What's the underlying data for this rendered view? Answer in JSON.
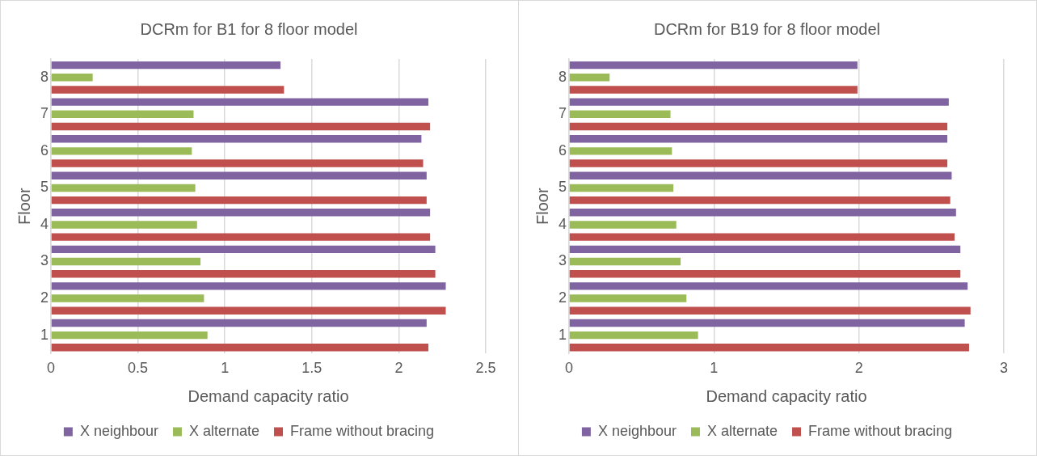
{
  "chart_data": [
    {
      "type": "bar",
      "orientation": "horizontal",
      "title": "DCRm for B1 for 8 floor model",
      "xlabel": "Demand capacity ratio",
      "ylabel": "Floor",
      "categories": [
        "8",
        "7",
        "6",
        "5",
        "4",
        "3",
        "2",
        "1"
      ],
      "series": [
        {
          "name": "X neighbour",
          "color": "#8064a2",
          "values": [
            1.32,
            2.17,
            2.13,
            2.16,
            2.18,
            2.21,
            2.27,
            2.16
          ]
        },
        {
          "name": "X alternate",
          "color": "#9bbb59",
          "values": [
            0.24,
            0.82,
            0.81,
            0.83,
            0.84,
            0.86,
            0.88,
            0.9
          ]
        },
        {
          "name": "Frame without bracing",
          "color": "#c0504d",
          "values": [
            1.34,
            2.18,
            2.14,
            2.16,
            2.18,
            2.21,
            2.27,
            2.17
          ]
        }
      ],
      "xlim": [
        0,
        2.5
      ],
      "xticks": [
        0,
        0.5,
        1,
        1.5,
        2,
        2.5
      ],
      "grid": "x",
      "legend": "bottom"
    },
    {
      "type": "bar",
      "orientation": "horizontal",
      "title": "DCRm for B19 for 8 floor model",
      "xlabel": "Demand capacity ratio",
      "ylabel": "Floor",
      "categories": [
        "8",
        "7",
        "6",
        "5",
        "4",
        "3",
        "2",
        "1"
      ],
      "series": [
        {
          "name": "X neighbour",
          "color": "#8064a2",
          "values": [
            1.99,
            2.62,
            2.61,
            2.64,
            2.67,
            2.7,
            2.75,
            2.73
          ]
        },
        {
          "name": "X alternate",
          "color": "#9bbb59",
          "values": [
            0.28,
            0.7,
            0.71,
            0.72,
            0.74,
            0.77,
            0.81,
            0.89
          ]
        },
        {
          "name": "Frame without bracing",
          "color": "#c0504d",
          "values": [
            1.99,
            2.61,
            2.61,
            2.63,
            2.66,
            2.7,
            2.77,
            2.76
          ]
        }
      ],
      "xlim": [
        0,
        3
      ],
      "xticks": [
        0,
        1,
        2,
        3
      ],
      "grid": "x",
      "legend": "bottom"
    }
  ]
}
